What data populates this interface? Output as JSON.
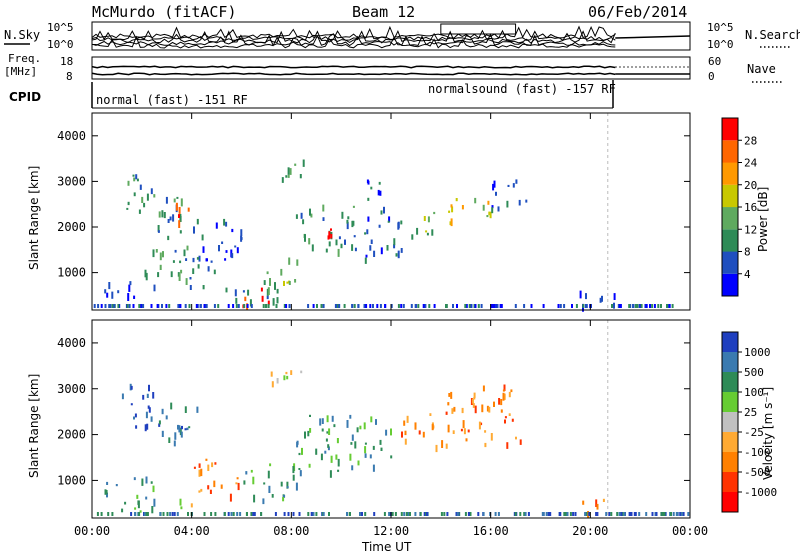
{
  "header": {
    "title": "McMurdo (fitACF)",
    "beam": "Beam 12",
    "date": "06/Feb/2014"
  },
  "top_panel": {
    "left_label": "N.Sky",
    "right_label": "N.Search",
    "yticks_left": [
      "10^5",
      "10^0"
    ],
    "yticks_right": [
      "10^5",
      "10^0"
    ]
  },
  "freq_panel": {
    "left_label_1": "Freq.",
    "left_label_2": "[MHz]",
    "right_label": "Nave",
    "yticks_left": [
      "18",
      "8"
    ],
    "yticks_right": [
      "60",
      "0"
    ]
  },
  "cpid_panel": {
    "label": "CPID",
    "segments": [
      {
        "label": "normal (fast) -151 RF",
        "start_hour": 0,
        "end_hour": 21.0
      },
      {
        "label": "normalsound (fast) -157 RF",
        "start_hour": 13.5,
        "end_hour": 21.0
      }
    ]
  },
  "time_axis": {
    "xlabel": "Time UT",
    "ticks": [
      "00:00",
      "04:00",
      "08:00",
      "12:00",
      "16:00",
      "20:00",
      "00:00"
    ],
    "xlim_hours": [
      0,
      24
    ]
  },
  "chart_data": [
    {
      "type": "heatmap",
      "name": "power",
      "ylabel": "Slant Range [km]",
      "yticks": [
        "1000",
        "2000",
        "3000",
        "4000"
      ],
      "ylim": [
        180,
        4500
      ],
      "colorbar_label": "Power [dB]",
      "colorbar_ticks": [
        "4",
        "8",
        "12",
        "16",
        "20",
        "24",
        "28"
      ],
      "colorbar_colors": [
        "#0000ff",
        "#1f4fbf",
        "#2e8b57",
        "#5faa5f",
        "#c8c800",
        "#ff9900",
        "#ff6600",
        "#ff0000"
      ],
      "patches": [
        {
          "t0": 0.3,
          "t1": 2.0,
          "r0": 400,
          "r1": 900,
          "level": 0
        },
        {
          "t0": 1.0,
          "t1": 2.5,
          "r0": 2300,
          "r1": 3200,
          "level": 2
        },
        {
          "t0": 2.5,
          "t1": 4.0,
          "r0": 1800,
          "r1": 2800,
          "level": 2
        },
        {
          "t0": 3.3,
          "t1": 4.0,
          "r0": 2000,
          "r1": 2600,
          "level": 6
        },
        {
          "t0": 2.0,
          "t1": 4.5,
          "r0": 700,
          "r1": 1600,
          "level": 2
        },
        {
          "t0": 4.0,
          "t1": 6.0,
          "r0": 1000,
          "r1": 2200,
          "level": 1
        },
        {
          "t0": 5.0,
          "t1": 7.5,
          "r0": 400,
          "r1": 900,
          "level": 2
        },
        {
          "t0": 5.8,
          "t1": 7.2,
          "r0": 300,
          "r1": 700,
          "level": 7
        },
        {
          "t0": 7.0,
          "t1": 8.5,
          "r0": 800,
          "r1": 1400,
          "level": 3
        },
        {
          "t0": 8.0,
          "t1": 10.5,
          "r0": 1500,
          "r1": 2500,
          "level": 2
        },
        {
          "t0": 9.4,
          "t1": 10.0,
          "r0": 1500,
          "r1": 2100,
          "level": 7
        },
        {
          "t0": 10.5,
          "t1": 12.5,
          "r0": 1300,
          "r1": 2400,
          "level": 1
        },
        {
          "t0": 11.0,
          "t1": 12.0,
          "r0": 2400,
          "r1": 3100,
          "level": 1
        },
        {
          "t0": 12.8,
          "t1": 14.0,
          "r0": 1800,
          "r1": 2400,
          "level": 3
        },
        {
          "t0": 14.0,
          "t1": 16.0,
          "r0": 2100,
          "r1": 2700,
          "level": 4
        },
        {
          "t0": 16.0,
          "t1": 17.5,
          "r0": 2400,
          "r1": 3100,
          "level": 1
        },
        {
          "t0": 7.0,
          "t1": 8.5,
          "r0": 3000,
          "r1": 3500,
          "level": 2
        },
        {
          "t0": 19.5,
          "t1": 21.0,
          "r0": 300,
          "r1": 700,
          "level": 1
        }
      ]
    },
    {
      "type": "heatmap",
      "name": "velocity",
      "ylabel": "Slant Range [km]",
      "yticks": [
        "1000",
        "2000",
        "3000",
        "4000"
      ],
      "ylim": [
        180,
        4500
      ],
      "colorbar_label": "Velocity [m s⁻¹]",
      "colorbar_ticks": [
        "1000",
        "500",
        "100",
        "25",
        "-25",
        "-100",
        "-500",
        "-1000"
      ],
      "colorbar_colors": [
        "#1f3fbf",
        "#3a7ab0",
        "#2e8b57",
        "#66cc33",
        "#c0c0c0",
        "#ffaa33",
        "#ff8000",
        "#ff3300",
        "#ff0000"
      ],
      "patches": [
        {
          "t0": 0.3,
          "t1": 2.5,
          "r0": 300,
          "r1": 1100,
          "level": 2
        },
        {
          "t0": 1.0,
          "t1": 2.5,
          "r0": 2200,
          "r1": 3200,
          "level": 0
        },
        {
          "t0": 2.5,
          "t1": 4.2,
          "r0": 1800,
          "r1": 2800,
          "level": 1
        },
        {
          "t0": 3.2,
          "t1": 4.0,
          "r0": 400,
          "r1": 700,
          "level": 4
        },
        {
          "t0": 4.0,
          "t1": 6.0,
          "r0": 700,
          "r1": 1500,
          "level": 6
        },
        {
          "t0": 6.0,
          "t1": 8.5,
          "r0": 600,
          "r1": 1400,
          "level": 2
        },
        {
          "t0": 8.0,
          "t1": 10.5,
          "r0": 1200,
          "r1": 2500,
          "level": 2
        },
        {
          "t0": 7.0,
          "t1": 8.5,
          "r0": 3000,
          "r1": 3500,
          "level": 4
        },
        {
          "t0": 10.5,
          "t1": 12.0,
          "r0": 1300,
          "r1": 2400,
          "level": 2
        },
        {
          "t0": 12.3,
          "t1": 13.8,
          "r0": 1700,
          "r1": 2500,
          "level": 6
        },
        {
          "t0": 14.0,
          "t1": 17.3,
          "r0": 1800,
          "r1": 3100,
          "level": 6
        },
        {
          "t0": 19.5,
          "t1": 21.0,
          "r0": 300,
          "r1": 600,
          "level": 6
        }
      ]
    }
  ]
}
